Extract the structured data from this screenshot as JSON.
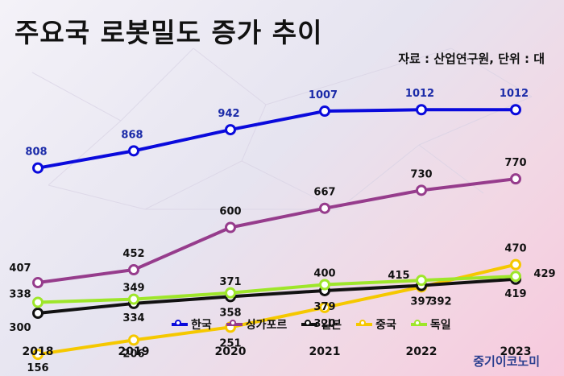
{
  "title": "주요국 로봇밀도 증가 추이",
  "source": "자료 : 산업연구원, 단위 : 대",
  "watermark": "중기이코노미",
  "chart_data": {
    "type": "line",
    "x": [
      "2018",
      "2019",
      "2020",
      "2021",
      "2022",
      "2023"
    ],
    "ylim": [
      100,
      1100
    ],
    "legend_position": "bottom",
    "grid": false,
    "series": [
      {
        "name": "한국",
        "color": "#0a0adc",
        "label_color": "#1a2aa8",
        "values": [
          808,
          868,
          942,
          1007,
          1012,
          1012
        ]
      },
      {
        "name": "싱가포르",
        "color": "#963c8c",
        "label_color": "#111111",
        "values": [
          407,
          452,
          600,
          667,
          730,
          770
        ]
      },
      {
        "name": "일본",
        "color": "#111111",
        "label_color": "#111111",
        "values": [
          300,
          334,
          358,
          379,
          397,
          419
        ]
      },
      {
        "name": "중국",
        "color": "#f5c800",
        "label_color": "#111111",
        "values": [
          156,
          206,
          251,
          320,
          392,
          470
        ]
      },
      {
        "name": "독일",
        "color": "#9ee62a",
        "label_color": "#111111",
        "values": [
          338,
          349,
          371,
          400,
          415,
          429
        ]
      }
    ]
  }
}
